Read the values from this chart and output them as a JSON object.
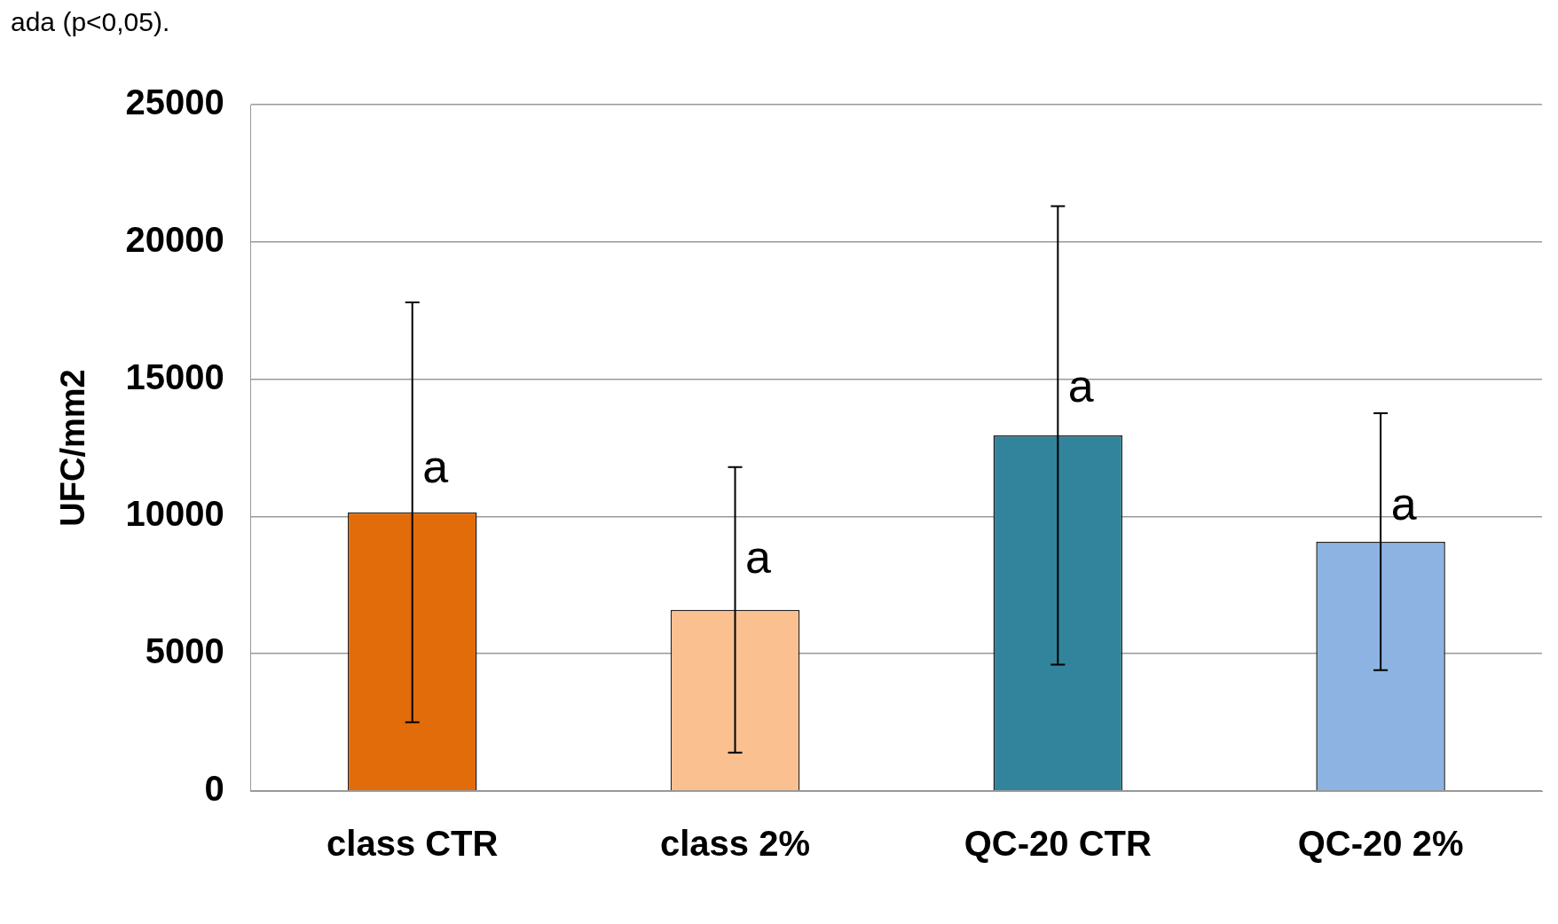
{
  "chart_data": {
    "type": "bar",
    "ylabel": "UFC/mm2",
    "categories": [
      "class CTR",
      "class 2%",
      "QC-20 CTR",
      "QC-20 2%"
    ],
    "values": [
      10150,
      6600,
      12950,
      9080
    ],
    "errors": [
      7650,
      5200,
      8350,
      4680
    ],
    "colors": [
      "#e36c0a",
      "#fac090",
      "#31849b",
      "#8db3e2"
    ],
    "ylim": [
      0,
      25000
    ],
    "yticks": [
      0,
      5000,
      10000,
      15000,
      20000,
      25000
    ],
    "grid": "y",
    "legend": false,
    "annotations": [
      "ada (p<0,05).",
      {
        "text": "a",
        "x": "class CTR",
        "y": 11700
      },
      {
        "text": "a",
        "x": "class 2%",
        "y": 8400
      },
      {
        "text": "a",
        "x": "QC-20 CTR",
        "y": 14650
      },
      {
        "text": "a",
        "x": "QC-20 2%",
        "y": 10350
      }
    ]
  }
}
